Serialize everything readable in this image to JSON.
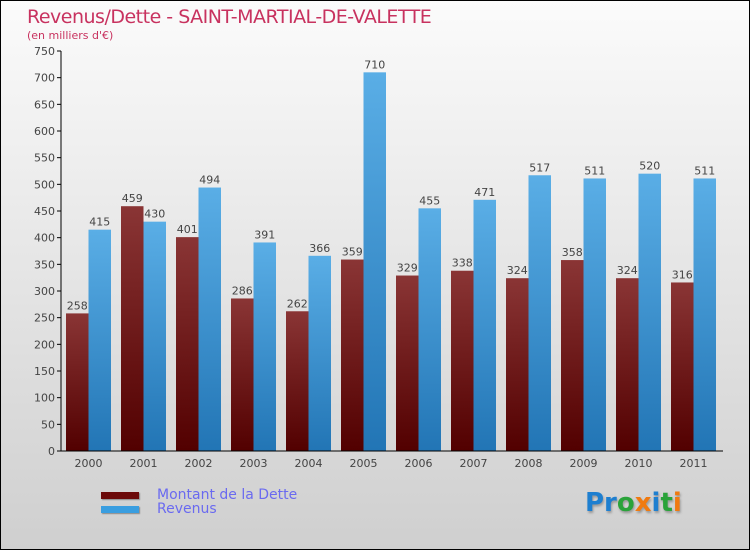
{
  "chart_data": {
    "type": "bar",
    "title": "Revenus/Dette - SAINT-MARTIAL-DE-VALETTE",
    "subtitle": "(en milliers d'€)",
    "xlabel": "",
    "ylabel": "",
    "ylim": [
      0,
      750
    ],
    "yticks": [
      0,
      50,
      100,
      150,
      200,
      250,
      300,
      350,
      400,
      450,
      500,
      550,
      600,
      650,
      700,
      750
    ],
    "categories": [
      "2000",
      "2001",
      "2002",
      "2003",
      "2004",
      "2005",
      "2006",
      "2007",
      "2008",
      "2009",
      "2010",
      "2011"
    ],
    "series": [
      {
        "name": "Montant de la Dette",
        "color": "#6b0a0a",
        "values": [
          258,
          459,
          401,
          286,
          262,
          359,
          329,
          338,
          324,
          358,
          324,
          316
        ]
      },
      {
        "name": "Revenus",
        "color": "#3a9ee0",
        "values": [
          415,
          430,
          494,
          391,
          366,
          710,
          455,
          471,
          517,
          511,
          520,
          511
        ]
      }
    ],
    "legend_position": "bottom-left"
  },
  "logo": {
    "text": "Proxiti"
  }
}
